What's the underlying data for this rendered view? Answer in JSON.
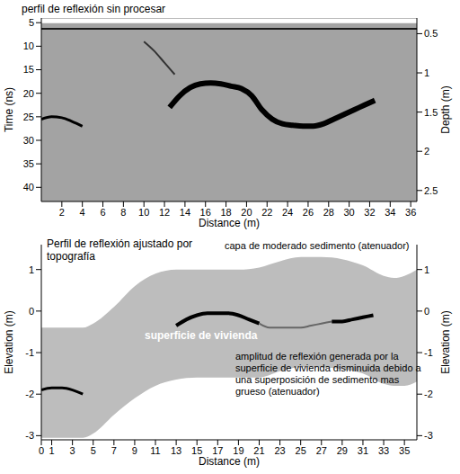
{
  "chart_data": [
    {
      "type": "line",
      "title": "perfil de reflexión sin procesar",
      "x_label": "Distance (m)",
      "y_label": "Time (ns)",
      "y2_label": "Depth (m)",
      "xlim": [
        0,
        36.6
      ],
      "xticks": [
        2,
        4,
        6,
        8,
        10,
        12,
        14,
        16,
        18,
        20,
        22,
        24,
        26,
        28,
        30,
        32,
        34,
        36
      ],
      "ylim": [
        43,
        4
      ],
      "yticks": [
        5,
        10,
        15,
        20,
        25,
        30,
        35,
        40
      ],
      "y2lim": [
        2.64,
        0.3
      ],
      "y2ticks": [
        0.5,
        1,
        1.5,
        2,
        2.5
      ],
      "grid": false,
      "color": "#a3a3a3",
      "series": [
        {
          "type": "line",
          "color": "#ffffff",
          "x": [
            0,
            36.6
          ],
          "values": [
            4.6,
            4.6
          ]
        },
        {
          "type": "line",
          "color": "#1a1a1a",
          "x": [
            0,
            36.6
          ],
          "values": [
            6.3,
            6.3
          ]
        },
        {
          "type": "line",
          "color": "#333333",
          "x": [
            10,
            11,
            12,
            13
          ],
          "values": [
            9,
            11,
            13.5,
            16
          ]
        },
        {
          "type": "line",
          "color": "#000000",
          "x": [
            0,
            1,
            2,
            3,
            4
          ],
          "values": [
            25.5,
            25,
            25.2,
            26,
            27
          ]
        },
        {
          "type": "line",
          "color": "#000000",
          "x": [
            12.5,
            13.5,
            14.5,
            15.5,
            16.5,
            17.5,
            18.5,
            19.5,
            20.5,
            21.5,
            22.5,
            23.5,
            24.5,
            25.5,
            26.5,
            27.5,
            28.5,
            29.5,
            30.5,
            31.5,
            32.5
          ],
          "values": [
            23,
            20.5,
            18.8,
            18,
            17.8,
            18,
            18.5,
            19,
            20.5,
            23.5,
            25.5,
            26.5,
            26.8,
            27,
            27,
            26.5,
            25.5,
            24.5,
            23.5,
            22.5,
            21.5
          ]
        }
      ],
      "annotations": []
    },
    {
      "type": "line",
      "title": "Perfil de reflexión ajustado por topografía",
      "x_label": "Distance (m)",
      "y_label": "Elevation (m)",
      "y2_label": "Elevation (m)",
      "xlim": [
        0,
        36.2
      ],
      "xticks": [
        0,
        1,
        3,
        5,
        7,
        9,
        11,
        13,
        15,
        17,
        19,
        21,
        23,
        25,
        27,
        29,
        31,
        33,
        35
      ],
      "ylim": [
        -3.1,
        1.6
      ],
      "yticks": [
        -3,
        -2,
        -1,
        0,
        1
      ],
      "y2lim": [
        -3.1,
        1.6
      ],
      "y2ticks": [
        -3,
        -2,
        -1,
        0,
        1
      ],
      "grid": false,
      "color": "#ffffff",
      "series": [
        {
          "type": "area",
          "color": "#bdbdbd",
          "x": [
            0,
            4,
            5,
            7,
            9,
            11,
            13,
            15,
            17,
            19,
            21,
            23,
            25,
            27,
            29,
            31,
            33,
            34,
            35,
            36.2
          ],
          "values": [
            -0.4,
            -0.4,
            -0.3,
            0.1,
            0.6,
            0.9,
            1.0,
            1.0,
            1.0,
            1.0,
            1.05,
            1.2,
            1.3,
            1.3,
            1.25,
            1.1,
            0.85,
            0.8,
            0.85,
            1.0
          ],
          "lower": [
            -3.05,
            -3.05,
            -2.95,
            -2.5,
            -2.1,
            -1.8,
            -1.65,
            -1.6,
            -1.6,
            -1.6,
            -1.6,
            -1.45,
            -1.35,
            -1.35,
            -1.4,
            -1.5,
            -1.75,
            -1.8,
            -1.8,
            -1.7
          ]
        },
        {
          "type": "line",
          "color": "#000000",
          "x": [
            0,
            1,
            2,
            3,
            4
          ],
          "values": [
            -1.9,
            -1.85,
            -1.85,
            -1.9,
            -2.0
          ]
        },
        {
          "type": "line",
          "color": "#000000",
          "x": [
            13,
            14,
            15,
            16,
            17,
            18,
            19,
            20,
            21
          ],
          "values": [
            -0.35,
            -0.2,
            -0.1,
            -0.05,
            -0.05,
            -0.05,
            -0.1,
            -0.2,
            -0.3
          ]
        },
        {
          "type": "line",
          "color": "#666666",
          "x": [
            21,
            22,
            23,
            24,
            25,
            26,
            27,
            28
          ],
          "values": [
            -0.3,
            -0.4,
            -0.4,
            -0.4,
            -0.4,
            -0.35,
            -0.3,
            -0.25
          ]
        },
        {
          "type": "line",
          "color": "#000000",
          "x": [
            28,
            29,
            30,
            31,
            32
          ],
          "values": [
            -0.25,
            -0.25,
            -0.2,
            -0.15,
            -0.1
          ]
        }
      ],
      "annotations": [
        {
          "text": "capa de moderado sedimento (atenuador)"
        },
        {
          "text": "superficie de vivienda"
        },
        {
          "text": "amplitud de reflexión generada por la superficie de vivienda disminuida debido a una superposición de sedimento mas grueso (atenuador)"
        }
      ]
    }
  ]
}
